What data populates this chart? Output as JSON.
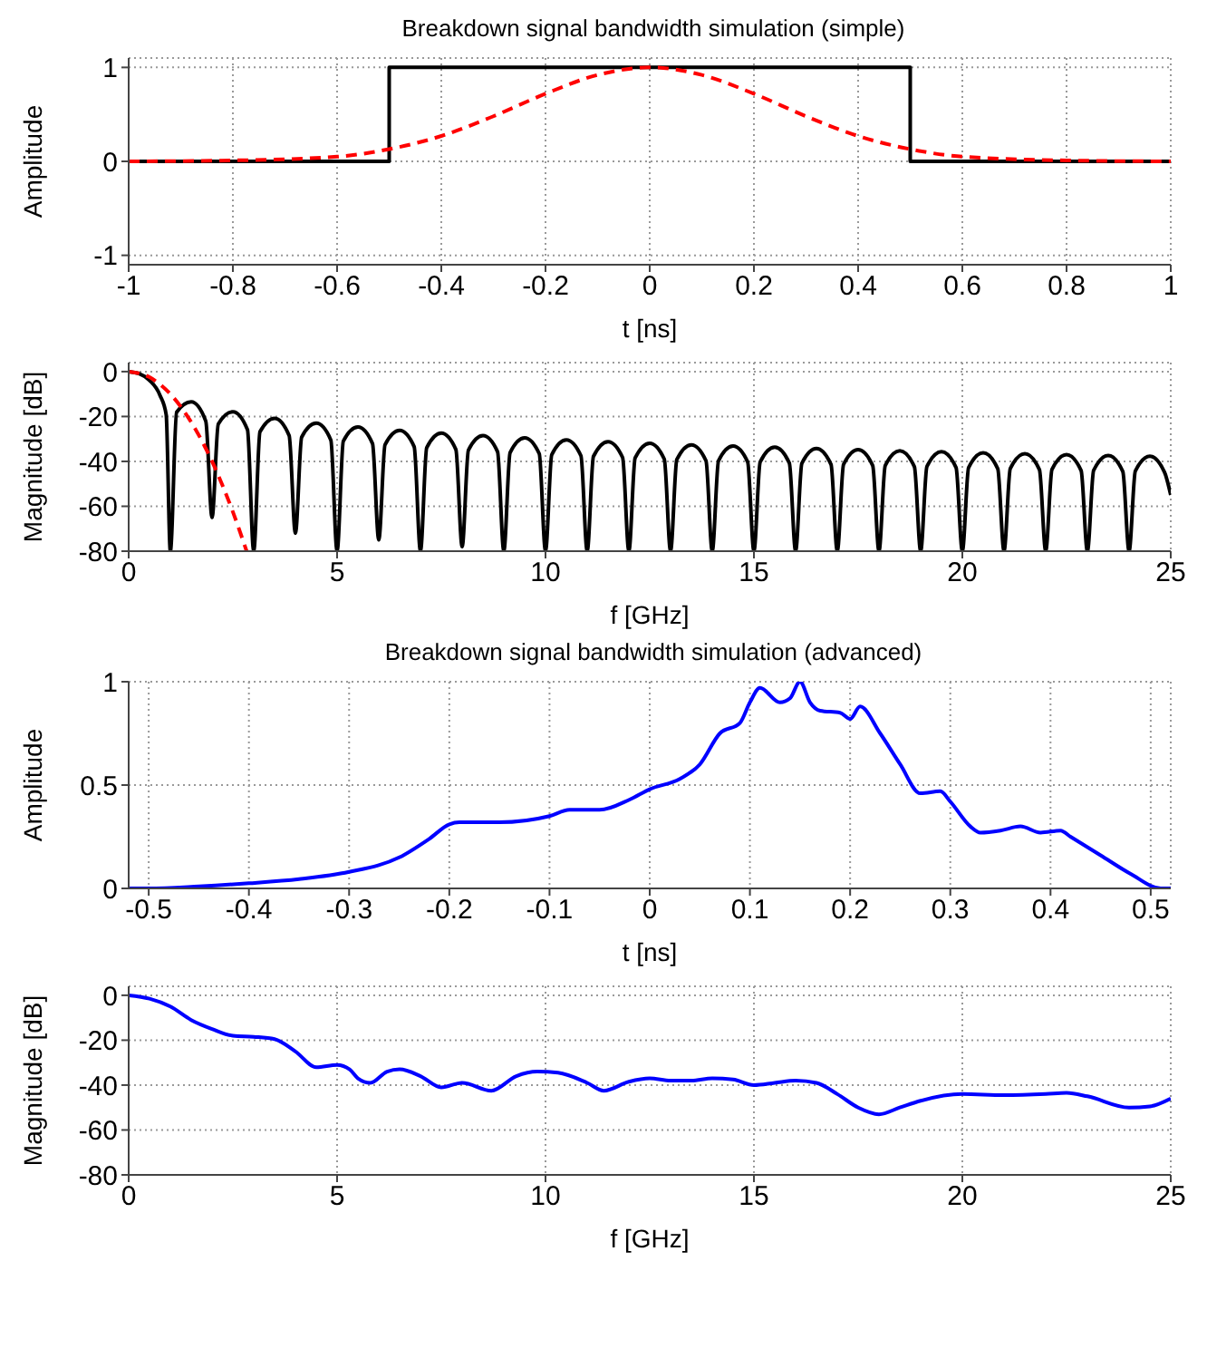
{
  "chart_data": [
    {
      "type": "line",
      "title": "Breakdown signal bandwidth simulation (simple)",
      "xlabel": "t [ns]",
      "ylabel": "Amplitude",
      "xlim": [
        -1,
        1
      ],
      "xticks": [
        -1,
        -0.8,
        -0.6,
        -0.4,
        -0.2,
        0,
        0.2,
        0.4,
        0.6,
        0.8,
        1
      ],
      "ylim": [
        -1.1,
        1.1
      ],
      "yticks": [
        -1,
        0,
        1
      ],
      "grid": true,
      "legend": false,
      "marker": "none",
      "series": [
        {
          "color": "#000000",
          "line_style": "solid",
          "x": [
            -1,
            -0.5,
            -0.5,
            0.5,
            0.5,
            1
          ],
          "values": [
            0,
            0,
            1,
            1,
            0,
            0
          ]
        },
        {
          "color": "#ff0000",
          "line_style": "dashed",
          "x": [
            -1,
            -0.8,
            -0.6,
            -0.5,
            -0.4,
            -0.3,
            -0.2,
            -0.1,
            0,
            0.1,
            0.2,
            0.3,
            0.4,
            0.5,
            0.6,
            0.8,
            1
          ],
          "values": [
            0,
            0.01,
            0.05,
            0.13,
            0.27,
            0.48,
            0.72,
            0.92,
            1,
            0.92,
            0.72,
            0.48,
            0.27,
            0.13,
            0.05,
            0.01,
            0
          ]
        }
      ]
    },
    {
      "type": "line",
      "xlabel": "f [GHz]",
      "ylabel": "Magnitude [dB]",
      "xlim": [
        0,
        25
      ],
      "xticks": [
        0,
        5,
        10,
        15,
        20,
        25
      ],
      "ylim": [
        -80,
        4
      ],
      "yticks": [
        -80,
        -60,
        -40,
        -20,
        0
      ],
      "grid": true,
      "legend": false,
      "marker": "none",
      "series": [
        {
          "color": "#000000",
          "line_style": "solid",
          "x": [
            0,
            0.25,
            0.5,
            0.75,
            0.9,
            1,
            1.15,
            1.5,
            1.85,
            2,
            2.15,
            2.5,
            2.85,
            3,
            3.15,
            3.5,
            3.85,
            4,
            4.15,
            4.5,
            4.85,
            5,
            5.15,
            5.5,
            5.85,
            6,
            6.15,
            6.5,
            6.85,
            7,
            7.15,
            7.5,
            7.85,
            8,
            8.15,
            8.5,
            8.85,
            9,
            9.15,
            9.5,
            9.85,
            10,
            10.15,
            10.5,
            10.85,
            11,
            11.15,
            11.5,
            11.85,
            12,
            12.15,
            12.5,
            12.85,
            13,
            13.15,
            13.5,
            13.85,
            14,
            14.15,
            14.5,
            14.85,
            15,
            15.15,
            15.5,
            15.85,
            16,
            16.15,
            16.5,
            16.85,
            17,
            17.15,
            17.5,
            17.85,
            18,
            18.15,
            18.5,
            18.85,
            19,
            19.15,
            19.5,
            19.85,
            20,
            20.15,
            20.5,
            20.85,
            21,
            21.15,
            21.5,
            21.85,
            22,
            22.15,
            22.5,
            22.85,
            23,
            23.15,
            23.5,
            23.85,
            24,
            24.15,
            24.5,
            24.85,
            25
          ],
          "values": [
            0,
            -0.9,
            -3.9,
            -10.5,
            -19.2,
            -80,
            -18.1,
            -13.5,
            -22.1,
            -65,
            -23.4,
            -17.9,
            -25.9,
            -80,
            -26.8,
            -20.8,
            -28.5,
            -72,
            -29.2,
            -23,
            -30.5,
            -80,
            -31,
            -24.7,
            -32.1,
            -75,
            -32.6,
            -26.2,
            -33.5,
            -80,
            -33.9,
            -27.4,
            -34.7,
            -78,
            -35,
            -28.5,
            -35.7,
            -80,
            -36.1,
            -29.5,
            -36.6,
            -80,
            -37,
            -30.4,
            -37.5,
            -80,
            -37.8,
            -31.2,
            -38.3,
            -80,
            -38.5,
            -31.9,
            -39,
            -80,
            -39.2,
            -32.6,
            -39.7,
            -80,
            -39.8,
            -33.2,
            -40.3,
            -80,
            -40.3,
            -33.7,
            -40.8,
            -80,
            -40.9,
            -34.3,
            -41.4,
            -80,
            -41.4,
            -34.8,
            -41.9,
            -80,
            -41.9,
            -35.3,
            -42.4,
            -80,
            -42.3,
            -35.7,
            -42.8,
            -80,
            -42.8,
            -36.2,
            -43.3,
            -80,
            -43.2,
            -36.6,
            -43.7,
            -80,
            -43.6,
            -37,
            -44.1,
            -80,
            -44,
            -37.4,
            -44.5,
            -80,
            -44.3,
            -37.7,
            -44.8,
            -55
          ]
        },
        {
          "color": "#ff0000",
          "line_style": "dashed",
          "x": [
            0,
            0.5,
            1,
            1.5,
            2,
            2.5,
            2.83
          ],
          "values": [
            0,
            -2.5,
            -10,
            -22.5,
            -40,
            -62.5,
            -80
          ]
        }
      ]
    },
    {
      "type": "line",
      "title": "Breakdown signal bandwidth simulation (advanced)",
      "xlabel": "t [ns]",
      "ylabel": "Amplitude",
      "xlim": [
        -0.52,
        0.52
      ],
      "xticks": [
        -0.5,
        -0.4,
        -0.3,
        -0.2,
        -0.1,
        0,
        0.1,
        0.2,
        0.3,
        0.4,
        0.5
      ],
      "ylim": [
        0,
        1
      ],
      "yticks": [
        0,
        0.5,
        1
      ],
      "grid": true,
      "legend": false,
      "marker": "none",
      "series": [
        {
          "color": "#0000ff",
          "line_style": "solid",
          "x": [
            -0.52,
            -0.5,
            -0.45,
            -0.4,
            -0.35,
            -0.3,
            -0.25,
            -0.22,
            -0.2,
            -0.19,
            -0.15,
            -0.1,
            -0.08,
            -0.05,
            -0.02,
            0,
            0.03,
            0.05,
            0.07,
            0.09,
            0.1,
            0.11,
            0.13,
            0.14,
            0.15,
            0.16,
            0.17,
            0.19,
            0.2,
            0.21,
            0.23,
            0.25,
            0.27,
            0.29,
            0.3,
            0.32,
            0.33,
            0.35,
            0.37,
            0.39,
            0.41,
            0.42,
            0.45,
            0.48,
            0.51,
            0.52
          ],
          "values": [
            0,
            0,
            0.01,
            0.025,
            0.045,
            0.08,
            0.15,
            0.24,
            0.31,
            0.32,
            0.32,
            0.35,
            0.38,
            0.38,
            0.43,
            0.48,
            0.53,
            0.6,
            0.75,
            0.8,
            0.9,
            0.97,
            0.9,
            0.92,
            1,
            0.9,
            0.86,
            0.85,
            0.82,
            0.88,
            0.75,
            0.6,
            0.46,
            0.47,
            0.42,
            0.3,
            0.27,
            0.28,
            0.3,
            0.27,
            0.28,
            0.25,
            0.16,
            0.07,
            0,
            0
          ]
        }
      ]
    },
    {
      "type": "line",
      "xlabel": "f [GHz]",
      "ylabel": "Magnitude [dB]",
      "xlim": [
        0,
        25
      ],
      "xticks": [
        0,
        5,
        10,
        15,
        20,
        25
      ],
      "ylim": [
        -80,
        4
      ],
      "yticks": [
        -80,
        -60,
        -40,
        -20,
        0
      ],
      "grid": true,
      "legend": false,
      "marker": "none",
      "series": [
        {
          "color": "#0000ff",
          "line_style": "solid",
          "x": [
            0,
            0.5,
            1,
            1.5,
            2,
            2.5,
            3,
            3.5,
            4,
            4.5,
            5,
            5.3,
            5.5,
            5.8,
            6.2,
            6.5,
            7,
            7.5,
            8,
            8.7,
            9.3,
            9.8,
            10.3,
            11,
            11.4,
            12,
            12.5,
            13,
            13.5,
            14,
            14.5,
            15,
            15.5,
            16,
            16.5,
            17,
            17.5,
            18,
            18.5,
            19,
            20,
            21,
            22,
            22.5,
            23,
            24,
            24.5,
            25
          ],
          "values": [
            0,
            -1.5,
            -5,
            -11,
            -15,
            -18,
            -18.5,
            -19.5,
            -25,
            -32,
            -31,
            -33,
            -37,
            -39,
            -34,
            -33,
            -36,
            -41,
            -39,
            -42.5,
            -36,
            -34,
            -34.5,
            -39,
            -42.5,
            -38.5,
            -37,
            -38,
            -38,
            -37,
            -37.5,
            -40,
            -39,
            -38,
            -39,
            -44,
            -50,
            -53,
            -50,
            -47,
            -44,
            -44.5,
            -44,
            -43.5,
            -45,
            -50,
            -49.5,
            -46
          ]
        }
      ]
    }
  ]
}
